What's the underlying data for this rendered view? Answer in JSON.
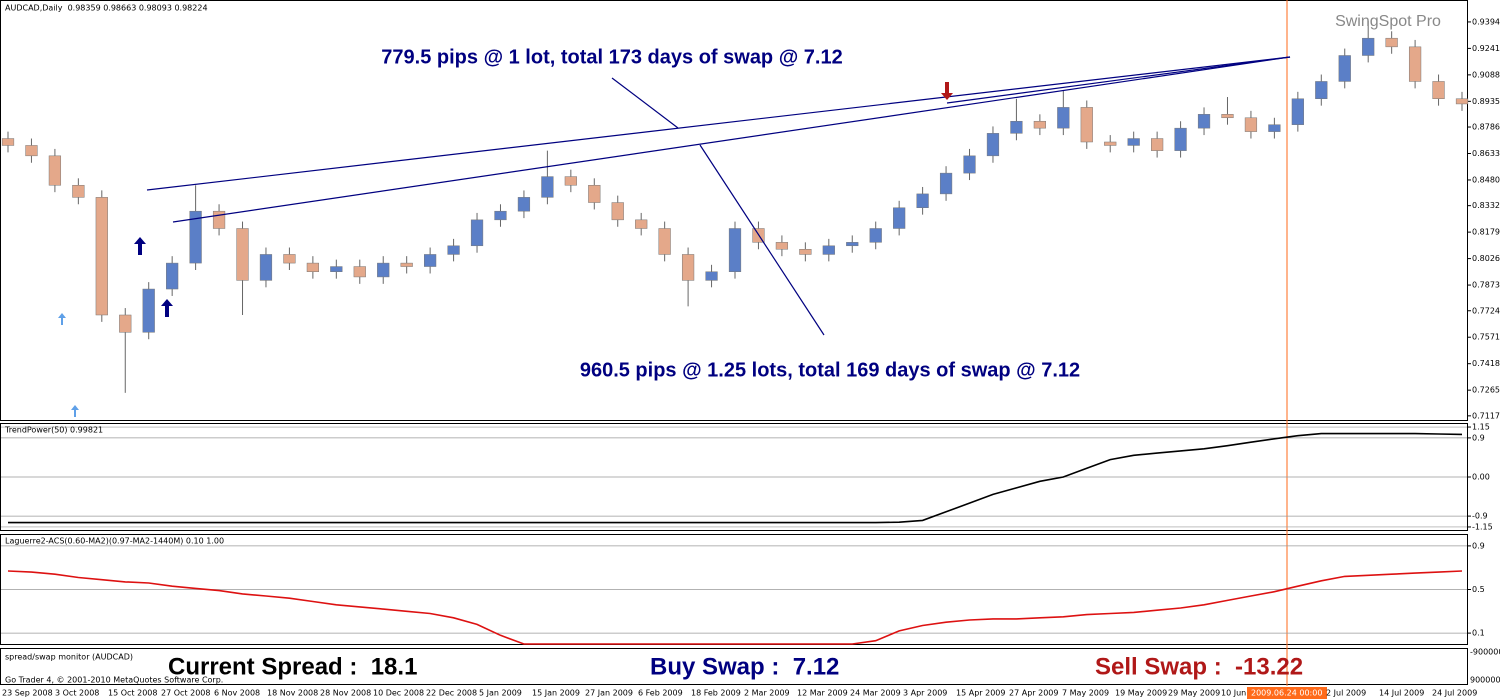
{
  "header": "AUDCAD,Daily  0.98359 0.98663 0.98093 0.98224",
  "brand": "SwingSpot Pro",
  "annotations": [
    "779.5 pips @ 1 lot, total 173 days of swap @ 7.12",
    "960.5 pips @ 1.25 lots, total 169 days of swap @ 7.12"
  ],
  "chart_data": [
    {
      "type": "candlestick",
      "up_color": "#5b7fc7",
      "down_color": "#e4a88a",
      "ylim": [
        0.7093,
        0.9515
      ],
      "yticks": [
        {
          "value": 0.9394,
          "label": "0.93940"
        },
        {
          "value": 0.9241,
          "label": "0.92410"
        },
        {
          "value": 0.9088,
          "label": "0.90880"
        },
        {
          "value": 0.8935,
          "label": "0.89350"
        },
        {
          "value": 0.87865,
          "label": "0.87865"
        },
        {
          "value": 0.86335,
          "label": "0.86335"
        },
        {
          "value": 0.84805,
          "label": "0.84805"
        },
        {
          "value": 0.8332,
          "label": "0.83320"
        },
        {
          "value": 0.8179,
          "label": "0.81790"
        },
        {
          "value": 0.8026,
          "label": "0.80260"
        },
        {
          "value": 0.7873,
          "label": "0.78730"
        },
        {
          "value": 0.77245,
          "label": "0.77245"
        },
        {
          "value": 0.75715,
          "label": "0.75715"
        },
        {
          "value": 0.74185,
          "label": "0.74185"
        },
        {
          "value": 0.72655,
          "label": "0.72655"
        },
        {
          "value": 0.7117,
          "label": "0.71170"
        }
      ],
      "open": [
        0.872,
        0.868,
        0.862,
        0.845,
        0.838,
        0.77,
        0.76,
        0.785,
        0.8,
        0.83,
        0.82,
        0.79,
        0.805,
        0.8,
        0.795,
        0.798,
        0.792,
        0.8,
        0.798,
        0.805,
        0.81,
        0.825,
        0.83,
        0.838,
        0.85,
        0.845,
        0.835,
        0.825,
        0.82,
        0.805,
        0.79,
        0.795,
        0.82,
        0.812,
        0.808,
        0.805,
        0.81,
        0.812,
        0.82,
        0.832,
        0.84,
        0.852,
        0.862,
        0.875,
        0.882,
        0.878,
        0.89,
        0.87,
        0.868,
        0.872,
        0.865,
        0.878,
        0.886,
        0.884,
        0.876,
        0.88,
        0.895,
        0.905,
        0.92,
        0.93,
        0.925,
        0.905,
        0.895
      ],
      "high": [
        0.876,
        0.872,
        0.866,
        0.849,
        0.842,
        0.774,
        0.789,
        0.804,
        0.845,
        0.834,
        0.824,
        0.809,
        0.809,
        0.804,
        0.802,
        0.802,
        0.804,
        0.804,
        0.809,
        0.814,
        0.829,
        0.834,
        0.842,
        0.865,
        0.854,
        0.849,
        0.839,
        0.829,
        0.824,
        0.809,
        0.799,
        0.824,
        0.824,
        0.816,
        0.812,
        0.814,
        0.816,
        0.824,
        0.836,
        0.844,
        0.856,
        0.866,
        0.879,
        0.895,
        0.886,
        0.9,
        0.894,
        0.874,
        0.876,
        0.876,
        0.882,
        0.89,
        0.896,
        0.888,
        0.884,
        0.899,
        0.909,
        0.924,
        0.94,
        0.934,
        0.929,
        0.909,
        0.899
      ],
      "low": [
        0.864,
        0.858,
        0.841,
        0.834,
        0.766,
        0.725,
        0.756,
        0.781,
        0.796,
        0.816,
        0.77,
        0.786,
        0.796,
        0.791,
        0.791,
        0.788,
        0.788,
        0.794,
        0.794,
        0.801,
        0.806,
        0.821,
        0.826,
        0.834,
        0.841,
        0.831,
        0.821,
        0.816,
        0.801,
        0.775,
        0.786,
        0.791,
        0.808,
        0.804,
        0.801,
        0.801,
        0.806,
        0.808,
        0.816,
        0.828,
        0.836,
        0.848,
        0.858,
        0.871,
        0.874,
        0.874,
        0.866,
        0.864,
        0.864,
        0.861,
        0.861,
        0.874,
        0.88,
        0.872,
        0.872,
        0.876,
        0.891,
        0.901,
        0.916,
        0.921,
        0.901,
        0.891,
        0.888
      ],
      "close": [
        0.868,
        0.862,
        0.845,
        0.838,
        0.77,
        0.76,
        0.785,
        0.8,
        0.83,
        0.82,
        0.79,
        0.805,
        0.8,
        0.795,
        0.798,
        0.792,
        0.8,
        0.798,
        0.805,
        0.81,
        0.825,
        0.83,
        0.838,
        0.85,
        0.845,
        0.835,
        0.825,
        0.82,
        0.805,
        0.79,
        0.795,
        0.82,
        0.812,
        0.808,
        0.805,
        0.81,
        0.812,
        0.82,
        0.832,
        0.84,
        0.852,
        0.862,
        0.875,
        0.882,
        0.878,
        0.89,
        0.87,
        0.868,
        0.872,
        0.865,
        0.878,
        0.886,
        0.884,
        0.876,
        0.88,
        0.895,
        0.905,
        0.92,
        0.93,
        0.925,
        0.905,
        0.895,
        0.892
      ]
    },
    {
      "type": "line",
      "title": "TrendPower(50) 0.99821",
      "color": "#000000",
      "ylim": [
        -1.22,
        1.22
      ],
      "yticks": [
        1.15,
        0.9,
        {
          "value": 0,
          "label": "0.00"
        },
        -0.9,
        -1.15
      ],
      "values": [
        -1.05,
        -1.05,
        -1.05,
        -1.05,
        -1.05,
        -1.05,
        -1.05,
        -1.05,
        -1.05,
        -1.05,
        -1.05,
        -1.05,
        -1.05,
        -1.05,
        -1.05,
        -1.05,
        -1.05,
        -1.05,
        -1.05,
        -1.05,
        -1.05,
        -1.05,
        -1.05,
        -1.05,
        -1.05,
        -1.05,
        -1.05,
        -1.05,
        -1.05,
        -1.05,
        -1.05,
        -1.05,
        -1.05,
        -1.05,
        -1.05,
        -1.05,
        -1.05,
        -1.05,
        -1.04,
        -1.0,
        -0.8,
        -0.6,
        -0.4,
        -0.25,
        -0.1,
        0.0,
        0.2,
        0.4,
        0.5,
        0.55,
        0.6,
        0.65,
        0.72,
        0.8,
        0.88,
        0.95,
        1.0,
        1.0,
        1.0,
        1.0,
        1.0,
        0.99,
        0.98
      ]
    },
    {
      "type": "line",
      "title": "Laguerre2-ACS(0.60-MA2)(0.97-MA2-1440M) 0.10 1.00",
      "color": "#dd1111",
      "ylim": [
        0,
        1
      ],
      "yticks": [
        0.9,
        0.5,
        0.1
      ],
      "values": [
        0.67,
        0.66,
        0.64,
        0.61,
        0.59,
        0.57,
        0.56,
        0.53,
        0.51,
        0.49,
        0.46,
        0.44,
        0.42,
        0.39,
        0.36,
        0.34,
        0.32,
        0.3,
        0.28,
        0.24,
        0.18,
        0.08,
        0.0,
        0.0,
        0.0,
        0.0,
        0.0,
        0.0,
        0.0,
        0.0,
        0.0,
        0.0,
        0.0,
        0.0,
        0.0,
        0.0,
        0.0,
        0.03,
        0.12,
        0.17,
        0.2,
        0.22,
        0.23,
        0.23,
        0.24,
        0.25,
        0.27,
        0.28,
        0.29,
        0.31,
        0.33,
        0.36,
        0.4,
        0.44,
        0.48,
        0.53,
        0.58,
        0.62,
        0.63,
        0.64,
        0.65,
        0.66,
        0.67
      ]
    }
  ],
  "footer": "Go Trader 4, © 2001-2010 MetaQuotes Software Corp.",
  "monitor": {
    "title": "spread/swap monitor (AUDCAD)",
    "spread": "Current Spread :  18.1",
    "buy": "Buy Swap :  7.12",
    "sell": "Sell Swap :  -13.22",
    "axis": [
      "-900000",
      "9000000"
    ]
  },
  "dates": [
    "23 Sep 2008",
    "3 Oct 2008",
    "15 Oct 2008",
    "27 Oct 2008",
    "6 Nov 2008",
    "18 Nov 2008",
    "28 Nov 2008",
    "10 Dec 2008",
    "22 Dec 2008",
    "5 Jan 2009",
    "15 Jan 2009",
    "27 Jan 2009",
    "6 Feb 2009",
    "18 Feb 2009",
    "2 Mar 2009",
    "12 Mar 2009",
    "24 Mar 2009",
    "3 Apr 2009",
    "15 Apr 2009",
    "27 Apr 2009",
    "7 May 2009",
    "19 May 2009",
    "29 May 2009",
    "10 Jun 2009"
  ],
  "dates_after": [
    "2 Jul 2009",
    "14 Jul 2009",
    "24 Jul 2009"
  ],
  "cursor_date": "2009.06.24 00:00"
}
